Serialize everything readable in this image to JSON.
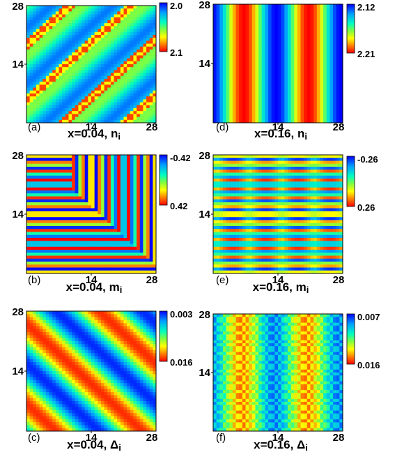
{
  "chart_data": [
    {
      "type": "heatmap",
      "label": "(a)",
      "title": "x=0.04, n",
      "title_sub": "i",
      "xticks": [
        "14",
        "28"
      ],
      "yticks": [
        "28",
        "14"
      ],
      "colorbar": {
        "top": "2.0",
        "bottom": "2.1"
      },
      "pattern": "diagonal stripes"
    },
    {
      "type": "heatmap",
      "label": "(d)",
      "title": "x=0.16, n",
      "title_sub": "i",
      "xticks": [
        "14",
        "28"
      ],
      "yticks": [
        "28",
        "14"
      ],
      "colorbar": {
        "top": "2.12",
        "bottom": "2.21"
      },
      "pattern": "vertical stripes"
    },
    {
      "type": "heatmap",
      "label": "(b)",
      "title": "x=0.04, m",
      "title_sub": "i",
      "xticks": [
        "14",
        "28"
      ],
      "yticks": [
        "28",
        "14"
      ],
      "colorbar": {
        "top": "-0.42",
        "bottom": "0.42"
      },
      "pattern": "striped domains"
    },
    {
      "type": "heatmap",
      "label": "(e)",
      "title": "x=0.16, m",
      "title_sub": "i",
      "xticks": [
        "14",
        "28"
      ],
      "yticks": [
        "28",
        "14"
      ],
      "colorbar": {
        "top": "-0.26",
        "bottom": "0.26"
      },
      "pattern": "horizontal stripes modulated"
    },
    {
      "type": "heatmap",
      "label": "(c)",
      "title": "x=0.04, Δ",
      "title_sub": "i",
      "xticks": [
        "14",
        "28"
      ],
      "yticks": [
        "28",
        "14"
      ],
      "colorbar": {
        "top": "0.003",
        "bottom": "0.016"
      },
      "pattern": "diagonal stripes"
    },
    {
      "type": "heatmap",
      "label": "(f)",
      "title": "x=0.16, Δ",
      "title_sub": "i",
      "xticks": [
        "14",
        "28"
      ],
      "yticks": [
        "28",
        "14"
      ],
      "colorbar": {
        "top": "0.007",
        "bottom": "0.016"
      },
      "pattern": "vertical checkered stripes"
    }
  ]
}
